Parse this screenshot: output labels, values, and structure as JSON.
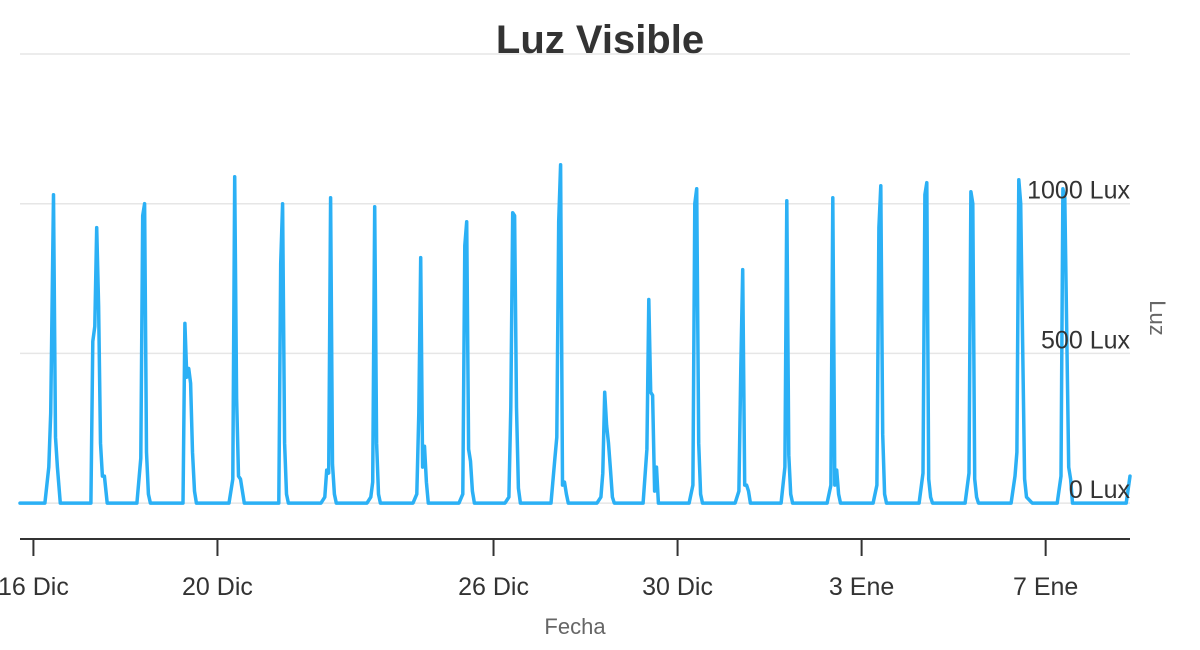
{
  "chart_data": {
    "type": "line",
    "title": "Luz Visible",
    "xlabel": "Fecha",
    "ylabel": "Luz",
    "ylim": [
      -120,
      1480
    ],
    "xlim": [
      "2019-12-15T17:00",
      "2020-01-08T20:00"
    ],
    "grid": true,
    "legend": "none",
    "y_ticks": [
      {
        "value": 0,
        "label": "0 Lux"
      },
      {
        "value": 500,
        "label": "500 Lux"
      },
      {
        "value": 1000,
        "label": "1000 Lux"
      }
    ],
    "y_gridlines": [
      0,
      500,
      1000,
      1500
    ],
    "x_ticks": [
      {
        "value": "2019-12-16",
        "label": "16 Dic"
      },
      {
        "value": "2019-12-20",
        "label": "20 Dic"
      },
      {
        "value": "2019-12-26",
        "label": "26 Dic"
      },
      {
        "value": "2019-12-30",
        "label": "30 Dic"
      },
      {
        "value": "2020-01-03",
        "label": "3 Ene"
      },
      {
        "value": "2020-01-07",
        "label": "7 Ene"
      }
    ],
    "series": [
      {
        "color": "#2bb0f5",
        "points": [
          [
            "2019-12-15T17:00",
            0
          ],
          [
            "2019-12-16T06:00",
            0
          ],
          [
            "2019-12-16T08:00",
            120
          ],
          [
            "2019-12-16T09:00",
            300
          ],
          [
            "2019-12-16T10:30",
            1030
          ],
          [
            "2019-12-16T11:30",
            220
          ],
          [
            "2019-12-16T12:30",
            120
          ],
          [
            "2019-12-16T14:00",
            0
          ],
          [
            "2019-12-17T06:00",
            0
          ],
          [
            "2019-12-17T07:00",
            540
          ],
          [
            "2019-12-17T08:00",
            590
          ],
          [
            "2019-12-17T09:00",
            920
          ],
          [
            "2019-12-17T10:00",
            660
          ],
          [
            "2019-12-17T11:00",
            200
          ],
          [
            "2019-12-17T12:00",
            90
          ],
          [
            "2019-12-17T13:00",
            90
          ],
          [
            "2019-12-17T14:30",
            0
          ],
          [
            "2019-12-18T06:00",
            0
          ],
          [
            "2019-12-18T08:00",
            150
          ],
          [
            "2019-12-18T09:00",
            960
          ],
          [
            "2019-12-18T10:00",
            1000
          ],
          [
            "2019-12-18T11:00",
            170
          ],
          [
            "2019-12-18T12:00",
            30
          ],
          [
            "2019-12-18T13:00",
            0
          ],
          [
            "2019-12-19T06:00",
            0
          ],
          [
            "2019-12-19T07:00",
            600
          ],
          [
            "2019-12-19T08:00",
            420
          ],
          [
            "2019-12-19T09:00",
            450
          ],
          [
            "2019-12-19T10:00",
            400
          ],
          [
            "2019-12-19T11:00",
            170
          ],
          [
            "2019-12-19T12:00",
            40
          ],
          [
            "2019-12-19T13:00",
            0
          ],
          [
            "2019-12-20T06:00",
            0
          ],
          [
            "2019-12-20T08:00",
            80
          ],
          [
            "2019-12-20T09:00",
            1090
          ],
          [
            "2019-12-20T10:00",
            350
          ],
          [
            "2019-12-20T11:00",
            90
          ],
          [
            "2019-12-20T12:00",
            80
          ],
          [
            "2019-12-20T13:00",
            40
          ],
          [
            "2019-12-20T14:00",
            0
          ],
          [
            "2019-12-21T06:00",
            0
          ],
          [
            "2019-12-21T08:00",
            0
          ],
          [
            "2019-12-21T09:00",
            800
          ],
          [
            "2019-12-21T10:00",
            1000
          ],
          [
            "2019-12-21T11:00",
            200
          ],
          [
            "2019-12-21T12:00",
            30
          ],
          [
            "2019-12-21T13:00",
            0
          ],
          [
            "2019-12-22T06:00",
            0
          ],
          [
            "2019-12-22T08:00",
            20
          ],
          [
            "2019-12-22T09:00",
            110
          ],
          [
            "2019-12-22T10:00",
            100
          ],
          [
            "2019-12-22T11:00",
            1020
          ],
          [
            "2019-12-22T12:00",
            130
          ],
          [
            "2019-12-22T13:00",
            30
          ],
          [
            "2019-12-22T14:00",
            0
          ],
          [
            "2019-12-23T06:00",
            0
          ],
          [
            "2019-12-23T08:00",
            20
          ],
          [
            "2019-12-23T09:00",
            70
          ],
          [
            "2019-12-23T10:00",
            990
          ],
          [
            "2019-12-23T11:00",
            200
          ],
          [
            "2019-12-23T12:00",
            30
          ],
          [
            "2019-12-23T13:00",
            0
          ],
          [
            "2019-12-24T06:00",
            0
          ],
          [
            "2019-12-24T08:00",
            30
          ],
          [
            "2019-12-24T09:00",
            300
          ],
          [
            "2019-12-24T10:00",
            820
          ],
          [
            "2019-12-24T11:00",
            120
          ],
          [
            "2019-12-24T12:00",
            190
          ],
          [
            "2019-12-24T13:00",
            70
          ],
          [
            "2019-12-24T14:00",
            0
          ],
          [
            "2019-12-25T06:00",
            0
          ],
          [
            "2019-12-25T08:00",
            30
          ],
          [
            "2019-12-25T09:00",
            860
          ],
          [
            "2019-12-25T10:00",
            940
          ],
          [
            "2019-12-25T11:00",
            180
          ],
          [
            "2019-12-25T12:00",
            140
          ],
          [
            "2019-12-25T13:00",
            40
          ],
          [
            "2019-12-25T14:00",
            0
          ],
          [
            "2019-12-26T06:00",
            0
          ],
          [
            "2019-12-26T08:00",
            20
          ],
          [
            "2019-12-26T09:00",
            320
          ],
          [
            "2019-12-26T10:00",
            970
          ],
          [
            "2019-12-26T11:00",
            960
          ],
          [
            "2019-12-26T12:00",
            320
          ],
          [
            "2019-12-26T13:00",
            50
          ],
          [
            "2019-12-26T14:00",
            0
          ],
          [
            "2019-12-27T06:00",
            0
          ],
          [
            "2019-12-27T08:00",
            150
          ],
          [
            "2019-12-27T09:00",
            220
          ],
          [
            "2019-12-27T10:00",
            940
          ],
          [
            "2019-12-27T11:00",
            1130
          ],
          [
            "2019-12-27T12:00",
            60
          ],
          [
            "2019-12-27T13:00",
            70
          ],
          [
            "2019-12-27T14:00",
            30
          ],
          [
            "2019-12-27T15:00",
            0
          ],
          [
            "2019-12-28T06:00",
            0
          ],
          [
            "2019-12-28T08:00",
            20
          ],
          [
            "2019-12-28T09:00",
            100
          ],
          [
            "2019-12-28T10:00",
            370
          ],
          [
            "2019-12-28T11:00",
            260
          ],
          [
            "2019-12-28T12:00",
            200
          ],
          [
            "2019-12-28T13:00",
            110
          ],
          [
            "2019-12-28T14:00",
            20
          ],
          [
            "2019-12-28T15:00",
            0
          ],
          [
            "2019-12-29T06:00",
            0
          ],
          [
            "2019-12-29T08:00",
            180
          ],
          [
            "2019-12-29T09:00",
            680
          ],
          [
            "2019-12-29T10:00",
            370
          ],
          [
            "2019-12-29T11:00",
            360
          ],
          [
            "2019-12-29T12:00",
            40
          ],
          [
            "2019-12-29T13:00",
            120
          ],
          [
            "2019-12-29T14:00",
            0
          ],
          [
            "2019-12-30T06:00",
            0
          ],
          [
            "2019-12-30T08:00",
            60
          ],
          [
            "2019-12-30T09:00",
            1000
          ],
          [
            "2019-12-30T10:00",
            1050
          ],
          [
            "2019-12-30T11:00",
            200
          ],
          [
            "2019-12-30T12:00",
            30
          ],
          [
            "2019-12-30T13:00",
            0
          ],
          [
            "2019-12-31T06:00",
            0
          ],
          [
            "2019-12-31T08:00",
            40
          ],
          [
            "2019-12-31T09:00",
            450
          ],
          [
            "2019-12-31T10:00",
            780
          ],
          [
            "2019-12-31T11:00",
            60
          ],
          [
            "2019-12-31T12:00",
            60
          ],
          [
            "2019-12-31T13:00",
            40
          ],
          [
            "2019-12-31T14:00",
            0
          ],
          [
            "2020-01-01T06:00",
            0
          ],
          [
            "2020-01-01T08:00",
            120
          ],
          [
            "2020-01-01T09:00",
            1010
          ],
          [
            "2020-01-01T10:00",
            160
          ],
          [
            "2020-01-01T11:00",
            30
          ],
          [
            "2020-01-01T12:00",
            0
          ],
          [
            "2020-01-02T06:00",
            0
          ],
          [
            "2020-01-02T08:00",
            60
          ],
          [
            "2020-01-02T09:00",
            1020
          ],
          [
            "2020-01-02T10:00",
            60
          ],
          [
            "2020-01-02T11:00",
            110
          ],
          [
            "2020-01-02T12:00",
            30
          ],
          [
            "2020-01-02T13:00",
            0
          ],
          [
            "2020-01-03T06:00",
            0
          ],
          [
            "2020-01-03T08:00",
            60
          ],
          [
            "2020-01-03T09:00",
            920
          ],
          [
            "2020-01-03T10:00",
            1060
          ],
          [
            "2020-01-03T11:00",
            230
          ],
          [
            "2020-01-03T12:00",
            30
          ],
          [
            "2020-01-03T13:00",
            0
          ],
          [
            "2020-01-04T06:00",
            0
          ],
          [
            "2020-01-04T08:00",
            100
          ],
          [
            "2020-01-04T09:00",
            1030
          ],
          [
            "2020-01-04T10:00",
            1070
          ],
          [
            "2020-01-04T11:00",
            80
          ],
          [
            "2020-01-04T12:00",
            20
          ],
          [
            "2020-01-04T13:00",
            0
          ],
          [
            "2020-01-05T06:00",
            0
          ],
          [
            "2020-01-05T08:00",
            100
          ],
          [
            "2020-01-05T09:00",
            1040
          ],
          [
            "2020-01-05T10:00",
            1000
          ],
          [
            "2020-01-05T11:00",
            80
          ],
          [
            "2020-01-05T12:00",
            20
          ],
          [
            "2020-01-05T13:00",
            0
          ],
          [
            "2020-01-06T06:00",
            0
          ],
          [
            "2020-01-06T08:00",
            90
          ],
          [
            "2020-01-06T09:00",
            170
          ],
          [
            "2020-01-06T10:00",
            1080
          ],
          [
            "2020-01-06T11:00",
            1000
          ],
          [
            "2020-01-06T12:00",
            540
          ],
          [
            "2020-01-06T13:00",
            80
          ],
          [
            "2020-01-06T14:00",
            20
          ],
          [
            "2020-01-06T17:00",
            0
          ],
          [
            "2020-01-07T06:00",
            0
          ],
          [
            "2020-01-07T08:00",
            90
          ],
          [
            "2020-01-07T09:00",
            1050
          ],
          [
            "2020-01-07T10:00",
            1020
          ],
          [
            "2020-01-07T11:00",
            580
          ],
          [
            "2020-01-07T12:00",
            120
          ],
          [
            "2020-01-07T13:00",
            80
          ],
          [
            "2020-01-07T14:00",
            0
          ],
          [
            "2020-01-08T18:00",
            0
          ],
          [
            "2020-01-08T20:00",
            90
          ]
        ]
      }
    ]
  }
}
